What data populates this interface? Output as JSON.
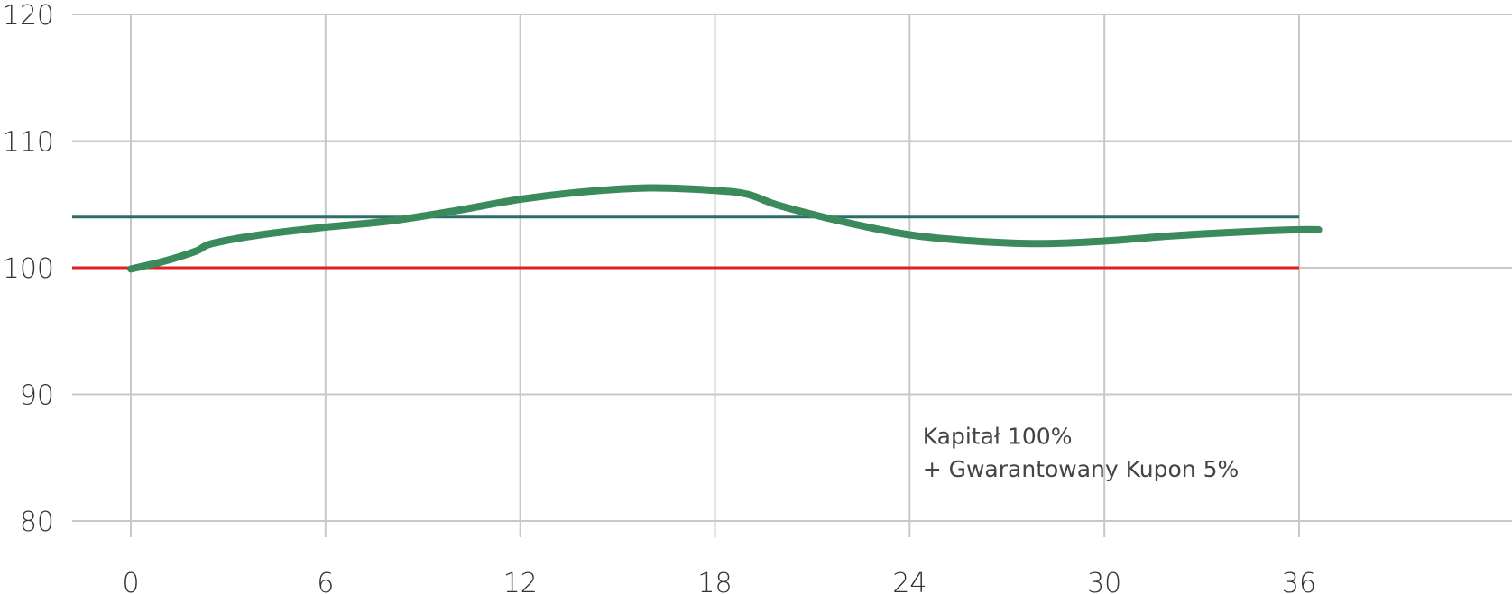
{
  "chart_data": {
    "type": "line",
    "x_ticks": [
      0,
      6,
      12,
      18,
      24,
      30,
      36
    ],
    "y_ticks": [
      80,
      90,
      100,
      110,
      120
    ],
    "xlim": [
      -1.8,
      42.5
    ],
    "ylim": [
      80,
      120
    ],
    "grid": true,
    "reference_lines": [
      {
        "y": 104,
        "x_range": [
          -1.8,
          36
        ],
        "color": "#2e6e68"
      },
      {
        "y": 100,
        "x_range": [
          -1.8,
          36
        ],
        "color": "#e02020"
      }
    ],
    "series": [
      {
        "color": "#3a8a5c",
        "x": [
          0,
          1,
          2,
          2.5,
          4,
          6,
          8,
          10,
          12,
          14,
          16,
          18,
          19,
          20,
          22,
          24,
          26,
          28,
          30,
          32,
          34,
          36,
          36.6
        ],
        "y": [
          99.9,
          100.5,
          101.3,
          101.9,
          102.6,
          103.2,
          103.7,
          104.5,
          105.4,
          106.0,
          106.3,
          106.1,
          105.8,
          104.9,
          103.6,
          102.6,
          102.1,
          101.9,
          102.1,
          102.5,
          102.8,
          103.0,
          103.0
        ]
      }
    ],
    "annotations": [
      {
        "text": "Kapitał 100%",
        "x": 24.4,
        "y": 86.1
      },
      {
        "text": "+ Gwarantowany Kupon 5%",
        "x": 24.4,
        "y": 83.5
      }
    ]
  }
}
